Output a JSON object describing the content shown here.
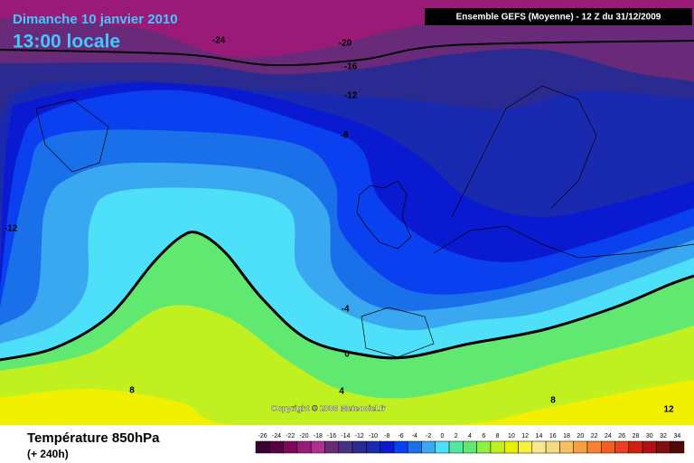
{
  "header": {
    "date": "Dimanche 10 janvier 2010",
    "time": "13:00 locale",
    "run": "Ensemble GEFS (Moyenne) - 12 Z du 31/12/2009"
  },
  "copyright": "Copyright © 2008 Meteociel.fr",
  "footer": {
    "title": "Température 850hPa",
    "lead_time": "(+ 240h)"
  },
  "contour_labels": [
    -24,
    -20,
    -16,
    -12,
    -8,
    -12,
    -4,
    0,
    4,
    8,
    8,
    12
  ],
  "legend": {
    "items": [
      {
        "value": -26,
        "color": "#3a0030"
      },
      {
        "value": -24,
        "color": "#5a0042"
      },
      {
        "value": -22,
        "color": "#7a0a58"
      },
      {
        "value": -20,
        "color": "#9a1a78"
      },
      {
        "value": -18,
        "color": "#b03090"
      },
      {
        "value": -16,
        "color": "#6a2a7a"
      },
      {
        "value": -14,
        "color": "#4a3080"
      },
      {
        "value": -12,
        "color": "#2a2a90"
      },
      {
        "value": -10,
        "color": "#1a2ab0"
      },
      {
        "value": -8,
        "color": "#0a1ad0"
      },
      {
        "value": -6,
        "color": "#0a40f0"
      },
      {
        "value": -4,
        "color": "#1a70e8"
      },
      {
        "value": -2,
        "color": "#3aa8f0"
      },
      {
        "value": 0,
        "color": "#4ee0f8"
      },
      {
        "value": 2,
        "color": "#50e8a0"
      },
      {
        "value": 4,
        "color": "#60e870"
      },
      {
        "value": 6,
        "color": "#90f040"
      },
      {
        "value": 8,
        "color": "#c0f020"
      },
      {
        "value": 10,
        "color": "#e8f000"
      },
      {
        "value": 12,
        "color": "#f8f040"
      },
      {
        "value": 14,
        "color": "#f8e890"
      },
      {
        "value": 16,
        "color": "#f8d880"
      },
      {
        "value": 18,
        "color": "#f8c060"
      },
      {
        "value": 20,
        "color": "#f8a040"
      },
      {
        "value": 22,
        "color": "#f88030"
      },
      {
        "value": 24,
        "color": "#f06020"
      },
      {
        "value": 26,
        "color": "#e84020"
      },
      {
        "value": 28,
        "color": "#d02010"
      },
      {
        "value": 30,
        "color": "#b01010"
      },
      {
        "value": 32,
        "color": "#801010"
      },
      {
        "value": 34,
        "color": "#500808"
      }
    ]
  }
}
